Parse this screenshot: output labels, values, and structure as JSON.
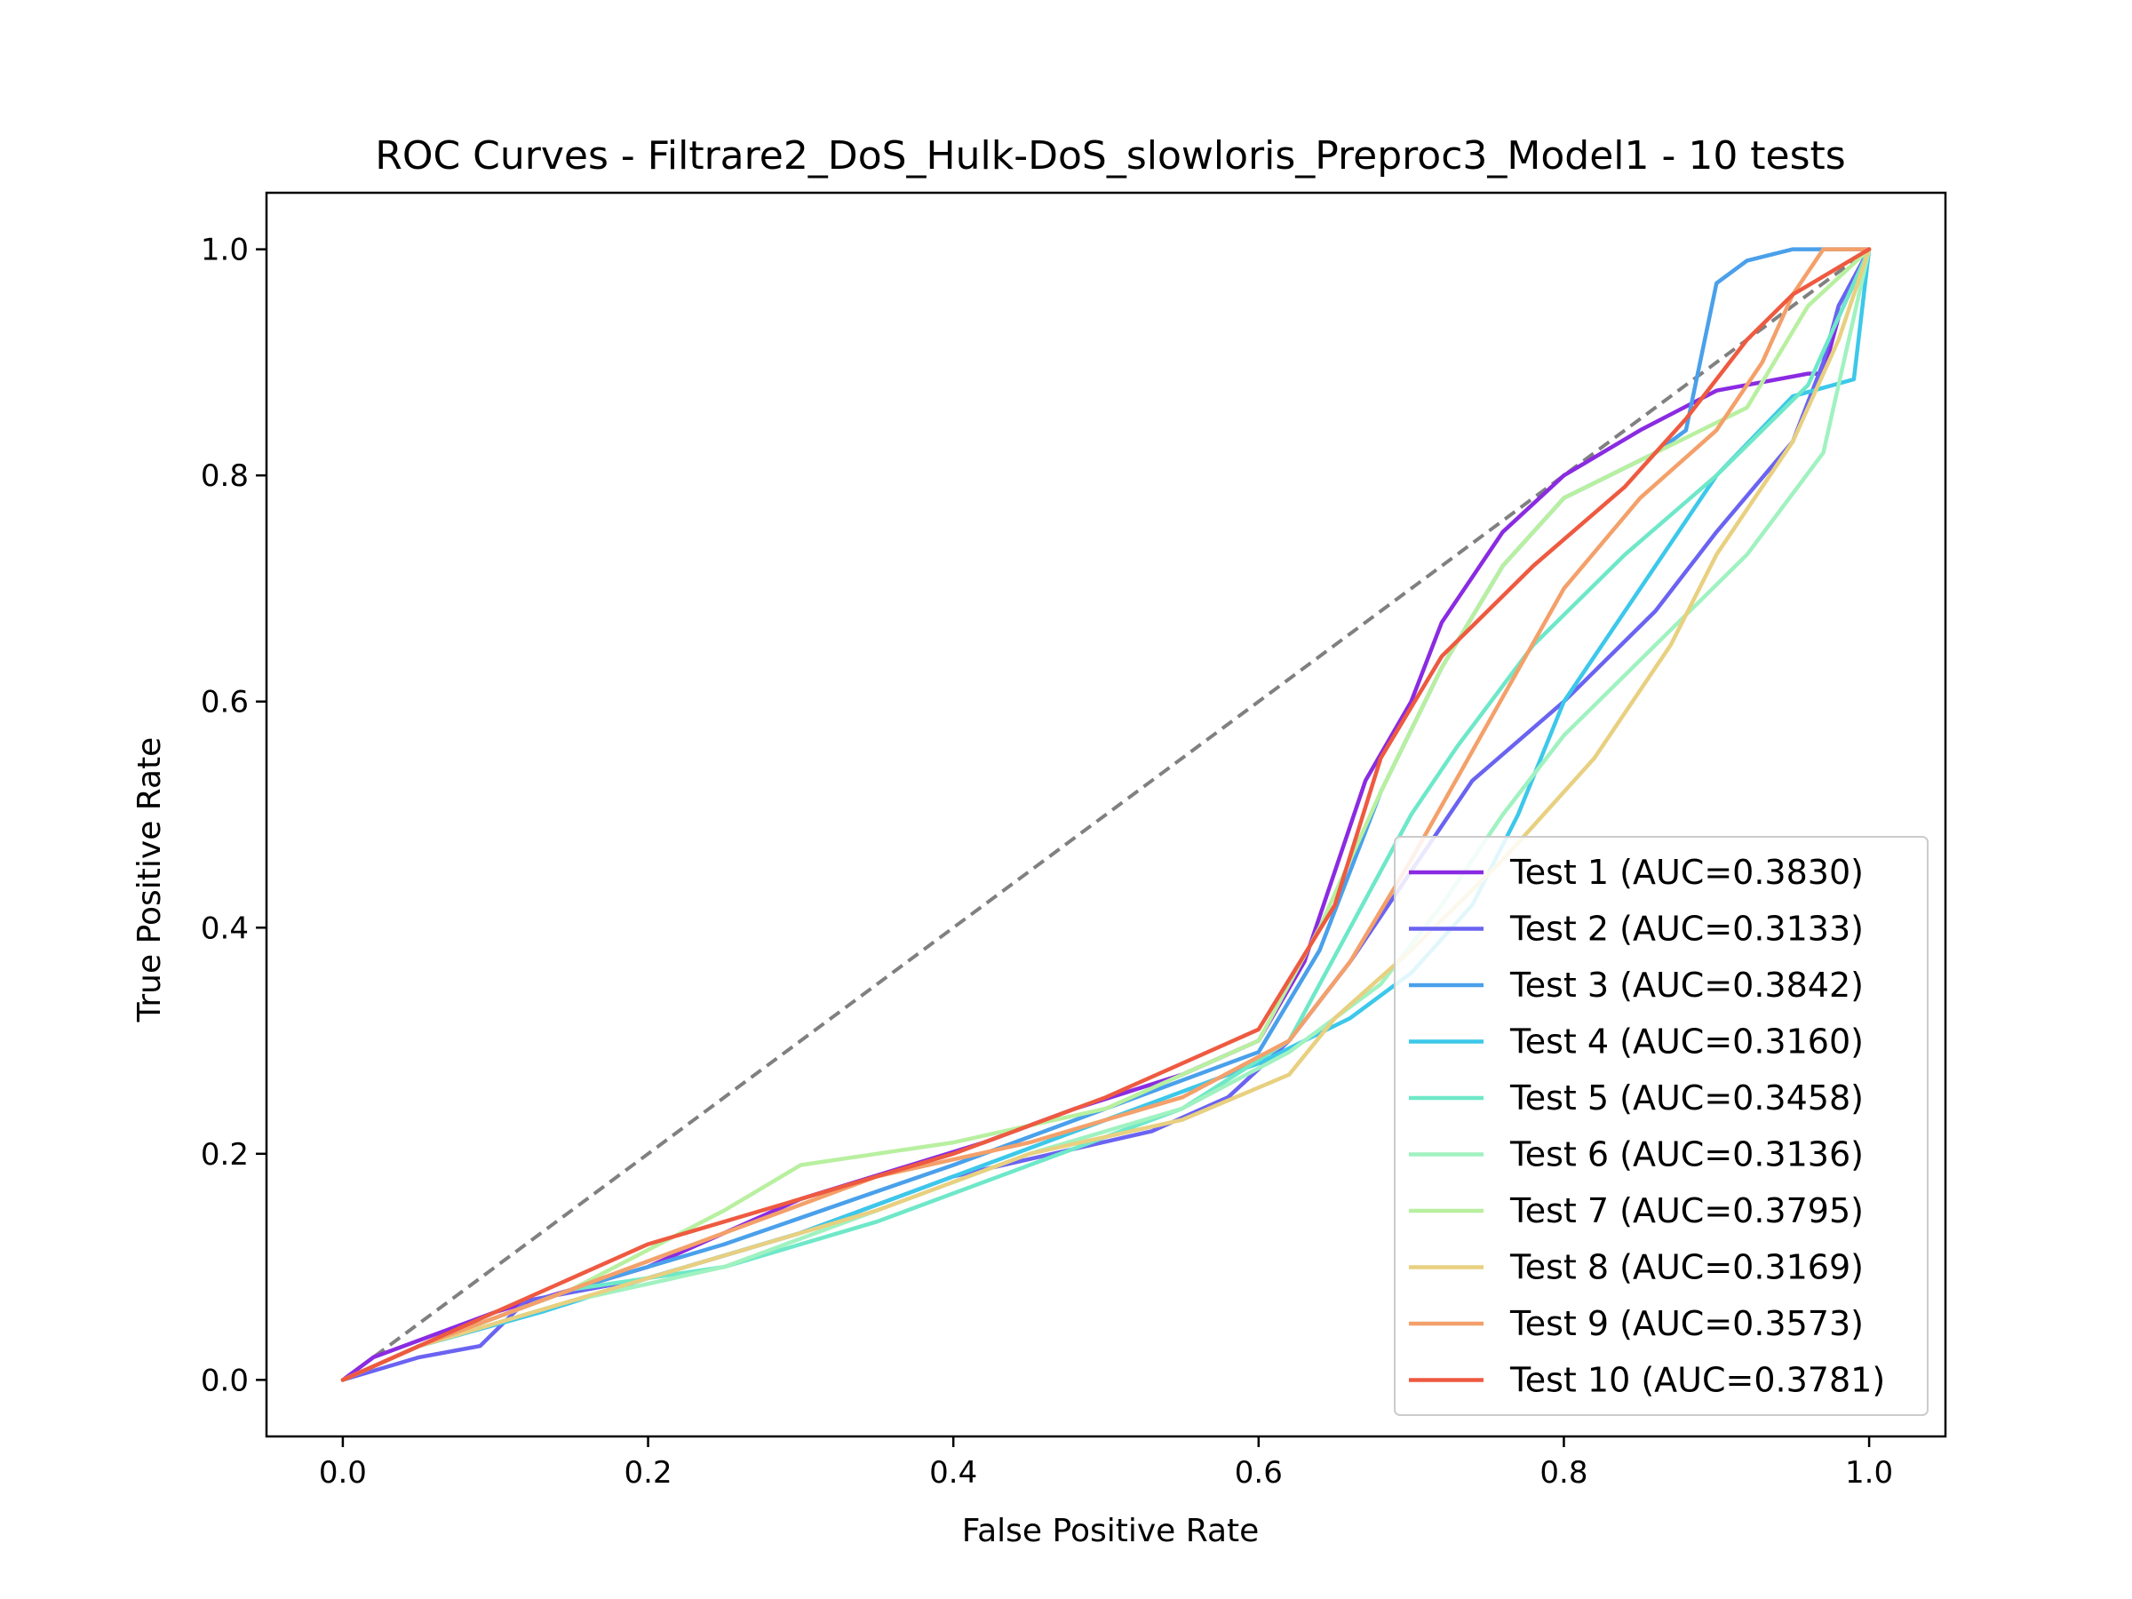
{
  "chart_data": {
    "type": "line",
    "title": "ROC Curves - Filtrare2_DoS_Hulk-DoS_slowloris_Preproc3_Model1 - 10 tests",
    "xlabel": "False Positive Rate",
    "ylabel": "True Positive Rate",
    "xlim": [
      -0.05,
      1.05
    ],
    "ylim": [
      -0.05,
      1.05
    ],
    "xticks": [
      0.0,
      0.2,
      0.4,
      0.6,
      0.8,
      1.0
    ],
    "yticks": [
      0.0,
      0.2,
      0.4,
      0.6,
      0.8,
      1.0
    ],
    "xtick_labels": [
      "0.0",
      "0.2",
      "0.4",
      "0.6",
      "0.8",
      "1.0"
    ],
    "ytick_labels": [
      "0.0",
      "0.2",
      "0.4",
      "0.6",
      "0.8",
      "1.0"
    ],
    "legend_position": "bottom-right",
    "grid": false,
    "diagonal": {
      "x": [
        0,
        1
      ],
      "y": [
        0,
        1
      ],
      "color": "#808080",
      "style": "dashed"
    },
    "series": [
      {
        "name": "Test 1 (AUC=0.3830)",
        "color": "#8a2be2",
        "x": [
          0,
          0.02,
          0.1,
          0.2,
          0.3,
          0.42,
          0.48,
          0.55,
          0.6,
          0.63,
          0.67,
          0.7,
          0.72,
          0.76,
          0.8,
          0.85,
          0.9,
          0.96,
          0.97,
          0.98,
          1.0
        ],
        "y": [
          0,
          0.02,
          0.06,
          0.1,
          0.16,
          0.21,
          0.24,
          0.27,
          0.3,
          0.37,
          0.53,
          0.6,
          0.67,
          0.75,
          0.8,
          0.84,
          0.875,
          0.89,
          0.89,
          0.94,
          1.0
        ]
      },
      {
        "name": "Test 2 (AUC=0.3133)",
        "color": "#6a63f2",
        "x": [
          0,
          0.05,
          0.09,
          0.12,
          0.2,
          0.3,
          0.4,
          0.53,
          0.58,
          0.62,
          0.66,
          0.7,
          0.74,
          0.8,
          0.86,
          0.9,
          0.95,
          0.97,
          0.98,
          1.0
        ],
        "y": [
          0,
          0.02,
          0.03,
          0.07,
          0.09,
          0.13,
          0.18,
          0.22,
          0.25,
          0.3,
          0.37,
          0.45,
          0.53,
          0.6,
          0.68,
          0.75,
          0.83,
          0.9,
          0.95,
          1.0
        ]
      },
      {
        "name": "Test 3 (AUC=0.3842)",
        "color": "#4aa0ea",
        "x": [
          0,
          0.05,
          0.15,
          0.25,
          0.4,
          0.5,
          0.6,
          0.64,
          0.68,
          0.72,
          0.76,
          0.8,
          0.86,
          0.88,
          0.9,
          0.92,
          0.95,
          1.0
        ],
        "y": [
          0,
          0.03,
          0.08,
          0.12,
          0.19,
          0.24,
          0.29,
          0.38,
          0.52,
          0.63,
          0.72,
          0.78,
          0.82,
          0.84,
          0.97,
          0.99,
          1.0,
          1.0
        ]
      },
      {
        "name": "Test 4 (AUC=0.3160)",
        "color": "#3cc8ea",
        "x": [
          0,
          0.05,
          0.13,
          0.2,
          0.3,
          0.4,
          0.5,
          0.6,
          0.66,
          0.7,
          0.74,
          0.77,
          0.8,
          0.85,
          0.9,
          0.95,
          0.99,
          1.0
        ],
        "y": [
          0,
          0.03,
          0.06,
          0.09,
          0.13,
          0.18,
          0.23,
          0.28,
          0.32,
          0.36,
          0.42,
          0.5,
          0.6,
          0.7,
          0.8,
          0.87,
          0.885,
          1.0
        ]
      },
      {
        "name": "Test 5 (AUC=0.3458)",
        "color": "#6ee8c8",
        "x": [
          0,
          0.05,
          0.15,
          0.25,
          0.35,
          0.45,
          0.55,
          0.62,
          0.66,
          0.7,
          0.73,
          0.78,
          0.84,
          0.9,
          0.96,
          1.0
        ],
        "y": [
          0,
          0.03,
          0.08,
          0.1,
          0.14,
          0.19,
          0.24,
          0.3,
          0.4,
          0.5,
          0.56,
          0.65,
          0.73,
          0.8,
          0.88,
          1.0
        ]
      },
      {
        "name": "Test 6 (AUC=0.3136)",
        "color": "#a0f2c0",
        "x": [
          0,
          0.05,
          0.15,
          0.25,
          0.35,
          0.45,
          0.55,
          0.62,
          0.68,
          0.72,
          0.76,
          0.8,
          0.86,
          0.92,
          0.97,
          1.0
        ],
        "y": [
          0,
          0.03,
          0.07,
          0.1,
          0.15,
          0.2,
          0.24,
          0.29,
          0.35,
          0.42,
          0.5,
          0.57,
          0.65,
          0.73,
          0.82,
          1.0
        ]
      },
      {
        "name": "Test 7 (AUC=0.3795)",
        "color": "#b8f0a0",
        "x": [
          0,
          0.05,
          0.15,
          0.25,
          0.3,
          0.4,
          0.5,
          0.6,
          0.64,
          0.68,
          0.72,
          0.76,
          0.8,
          0.86,
          0.92,
          0.96,
          1.0
        ],
        "y": [
          0,
          0.03,
          0.08,
          0.15,
          0.19,
          0.21,
          0.24,
          0.3,
          0.4,
          0.52,
          0.63,
          0.72,
          0.78,
          0.82,
          0.86,
          0.95,
          1.0
        ]
      },
      {
        "name": "Test 8 (AUC=0.3169)",
        "color": "#e8d080",
        "x": [
          0,
          0.05,
          0.15,
          0.25,
          0.35,
          0.45,
          0.55,
          0.62,
          0.65,
          0.7,
          0.76,
          0.82,
          0.87,
          0.9,
          0.95,
          0.98,
          1.0
        ],
        "y": [
          0,
          0.03,
          0.07,
          0.11,
          0.15,
          0.2,
          0.23,
          0.27,
          0.32,
          0.38,
          0.46,
          0.55,
          0.65,
          0.73,
          0.83,
          0.92,
          1.0
        ]
      },
      {
        "name": "Test 9 (AUC=0.3573)",
        "color": "#f4a06a",
        "x": [
          0,
          0.05,
          0.15,
          0.25,
          0.35,
          0.45,
          0.55,
          0.62,
          0.66,
          0.7,
          0.75,
          0.8,
          0.85,
          0.9,
          0.93,
          0.95,
          0.97,
          1.0
        ],
        "y": [
          0,
          0.03,
          0.08,
          0.13,
          0.18,
          0.21,
          0.25,
          0.3,
          0.37,
          0.46,
          0.58,
          0.7,
          0.78,
          0.84,
          0.9,
          0.96,
          1.0,
          1.0
        ]
      },
      {
        "name": "Test 10 (AUC=0.3781)",
        "color": "#ee5a40",
        "x": [
          0,
          0.05,
          0.1,
          0.15,
          0.2,
          0.3,
          0.4,
          0.5,
          0.6,
          0.65,
          0.68,
          0.72,
          0.78,
          0.84,
          0.88,
          0.92,
          0.95,
          1.0
        ],
        "y": [
          0,
          0.03,
          0.06,
          0.09,
          0.12,
          0.16,
          0.2,
          0.25,
          0.31,
          0.42,
          0.55,
          0.64,
          0.72,
          0.79,
          0.85,
          0.92,
          0.96,
          1.0
        ]
      }
    ]
  }
}
